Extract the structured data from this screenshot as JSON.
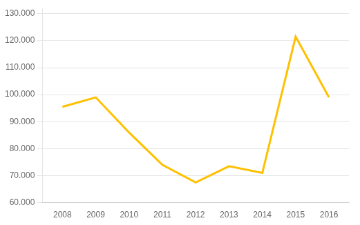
{
  "chart_data": {
    "type": "line",
    "x": [
      2008,
      2009,
      2010,
      2011,
      2012,
      2013,
      2014,
      2015,
      2016
    ],
    "values": [
      95500,
      99000,
      86000,
      74000,
      67500,
      73500,
      71000,
      121500,
      99000
    ],
    "color": "#FFC000",
    "xlim": [
      2007.4,
      2016.6
    ],
    "xticks": [
      2008,
      2009,
      2010,
      2011,
      2012,
      2013,
      2014,
      2015,
      2016
    ],
    "ylim": [
      60000,
      132000
    ],
    "yticks": [
      {
        "value": 60000,
        "label": "60.000"
      },
      {
        "value": 70000,
        "label": "70.000"
      },
      {
        "value": 80000,
        "label": "80.000"
      },
      {
        "value": 90000,
        "label": "90.000"
      },
      {
        "value": 100000,
        "label": "100.000"
      },
      {
        "value": 110000,
        "label": "110.000"
      },
      {
        "value": 120000,
        "label": "120.000"
      },
      {
        "value": 130000,
        "label": "130.000"
      }
    ],
    "grid": "y"
  }
}
